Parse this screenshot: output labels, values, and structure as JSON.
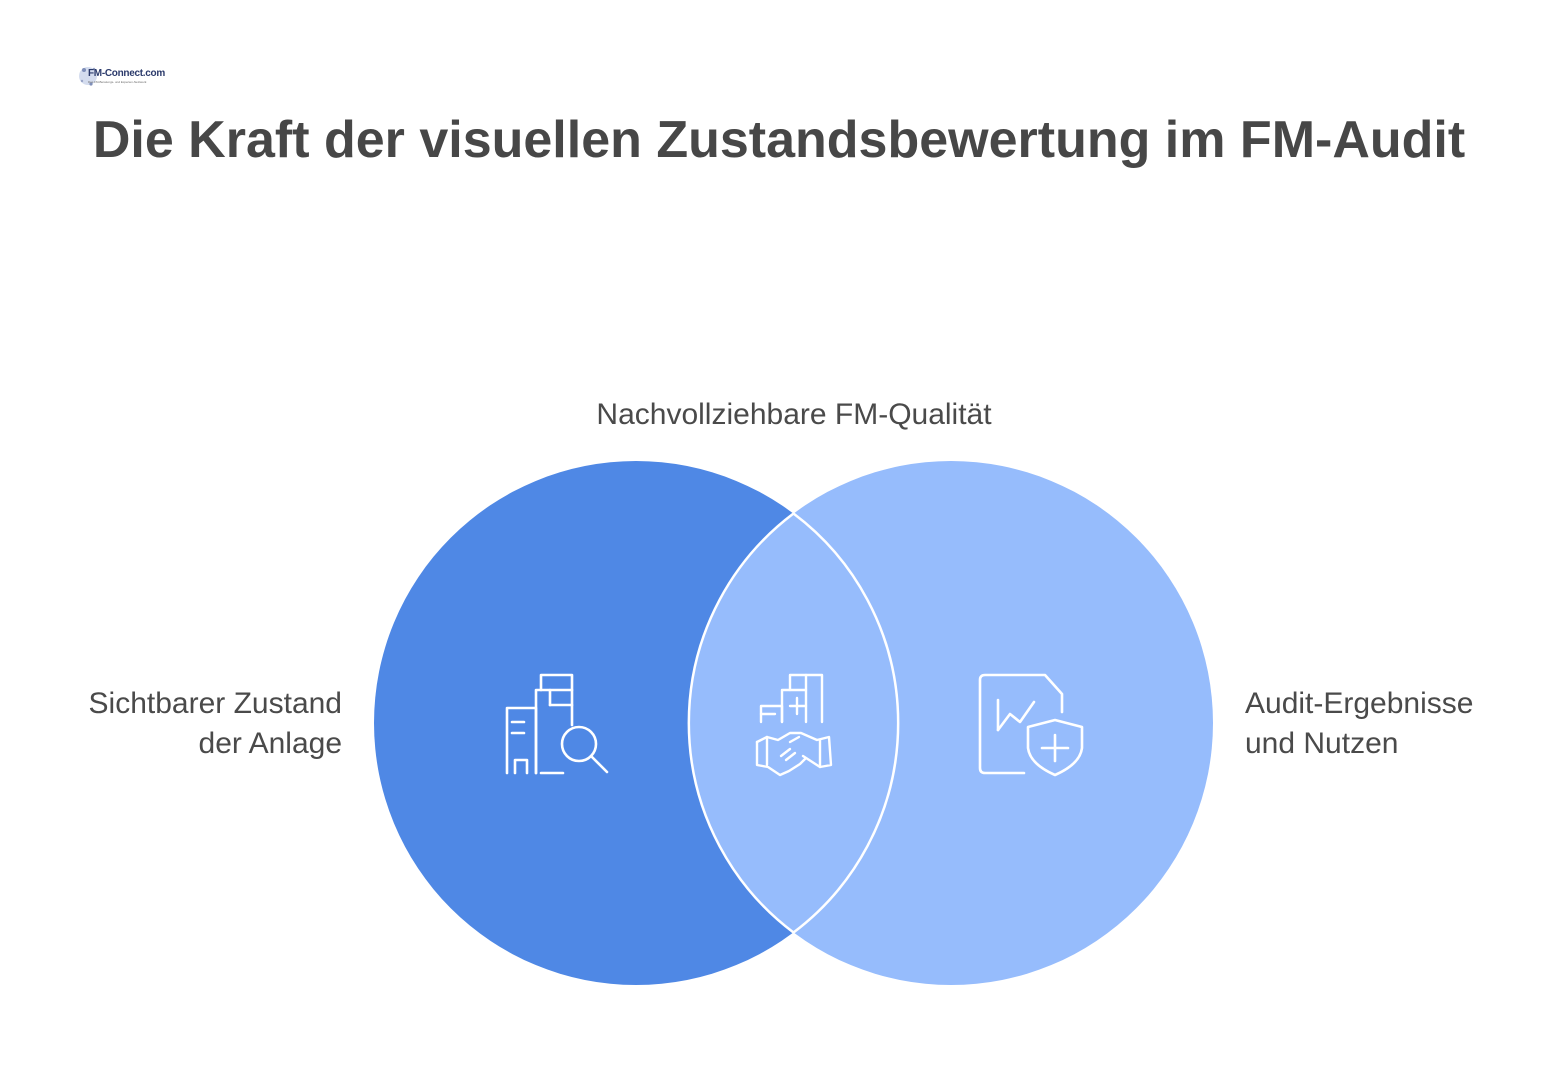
{
  "logo": {
    "name": "FM-Connect.com",
    "subtitle": "Das FM-Beratungs- und Experten-Netzwerk"
  },
  "title": "Die Kraft der visuellen Zustandsbewertung im FM-Audit",
  "venn": {
    "intersection_label": "Nachvollziehbare FM-Qualität",
    "left": {
      "line1": "Sichtbarer Zustand",
      "line2": "der Anlage",
      "icon": "building-search-icon",
      "color": "#4f88e5"
    },
    "right": {
      "line1": "Audit-Ergebnisse",
      "line2": "und Nutzen",
      "icon": "report-shield-icon",
      "color": "#96bcfc"
    },
    "center": {
      "icon": "buildings-handshake-icon",
      "color": "#96bcfc"
    }
  }
}
